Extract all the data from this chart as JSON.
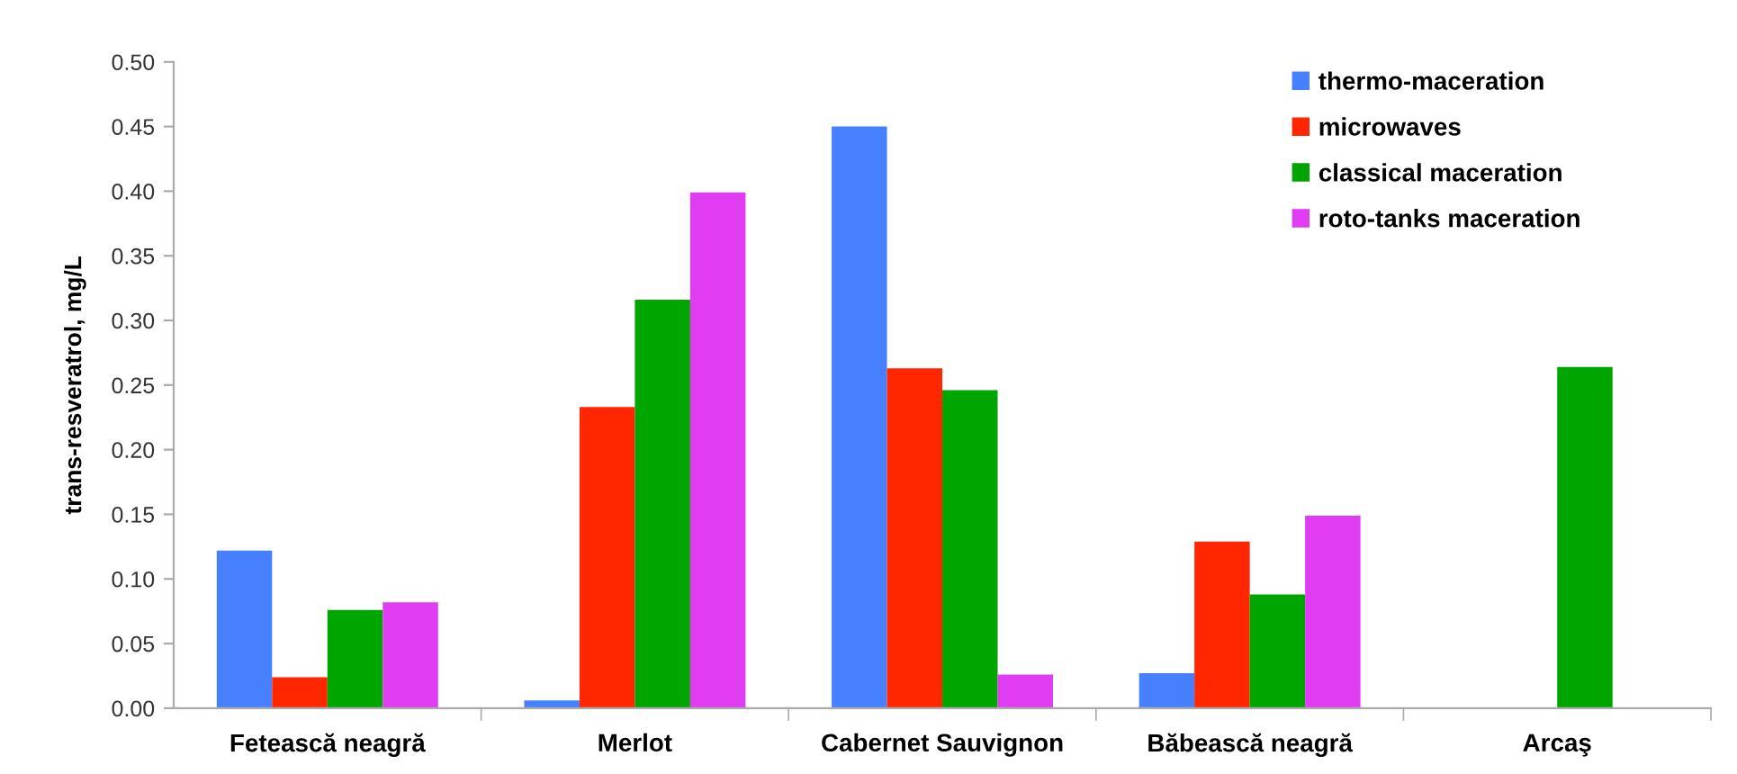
{
  "chart_data": {
    "type": "bar",
    "ylabel": "trans-resveratrol, mg/L",
    "categories": [
      "Fetească neagră",
      "Merlot",
      "Cabernet Sauvignon",
      "Băbească neagră",
      "Arcaş"
    ],
    "series": [
      {
        "name": "thermo-maceration",
        "color": "#4680ff",
        "values": [
          0.122,
          0.006,
          0.45,
          0.027,
          null
        ]
      },
      {
        "name": "microwaves",
        "color": "#ff2600",
        "values": [
          0.024,
          0.233,
          0.263,
          0.129,
          null
        ]
      },
      {
        "name": "classical maceration",
        "color": "#00a500",
        "values": [
          0.076,
          0.316,
          0.246,
          0.088,
          0.264
        ]
      },
      {
        "name": "roto-tanks maceration",
        "color": "#e03cf2",
        "values": [
          0.082,
          0.399,
          0.026,
          0.149,
          null
        ]
      }
    ],
    "ylim": [
      0,
      0.5
    ],
    "yticks": [
      {
        "value": 0,
        "label": "0.00"
      },
      {
        "value": 0.05,
        "label": "0.05"
      },
      {
        "value": 0.1,
        "label": "0.10"
      },
      {
        "value": 0.15,
        "label": "0.15"
      },
      {
        "value": 0.2,
        "label": "0.20"
      },
      {
        "value": 0.25,
        "label": "0.25"
      },
      {
        "value": 0.3,
        "label": "0.30"
      },
      {
        "value": 0.35,
        "label": "0.35"
      },
      {
        "value": 0.4,
        "label": "0.40"
      },
      {
        "value": 0.45,
        "label": "0.45"
      },
      {
        "value": 0.5,
        "label": "0.50"
      }
    ],
    "grid": false,
    "legend": "top right"
  }
}
